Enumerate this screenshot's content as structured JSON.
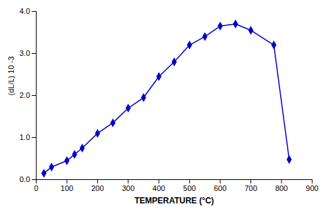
{
  "chart_data": {
    "type": "line",
    "x": [
      25,
      50,
      100,
      125,
      150,
      200,
      250,
      300,
      350,
      400,
      450,
      500,
      550,
      600,
      650,
      700,
      775,
      825
    ],
    "series": [
      {
        "color": "#0000cc",
        "marker": "diamond",
        "values": [
          0.15,
          0.3,
          0.45,
          0.6,
          0.75,
          1.1,
          1.35,
          1.7,
          1.95,
          2.45,
          2.8,
          3.2,
          3.4,
          3.65,
          3.7,
          3.55,
          3.2,
          0.48
        ]
      }
    ],
    "xlabel": "TEMPERATURE (°C)",
    "ylabel": "(dL/L) 10 -3",
    "xlim": [
      0,
      900
    ],
    "ylim": [
      0,
      4
    ],
    "xticks": [
      0,
      100,
      200,
      300,
      400,
      500,
      600,
      700,
      800,
      900
    ],
    "yticks": [
      0,
      1,
      2,
      3,
      4
    ],
    "grid": false
  }
}
